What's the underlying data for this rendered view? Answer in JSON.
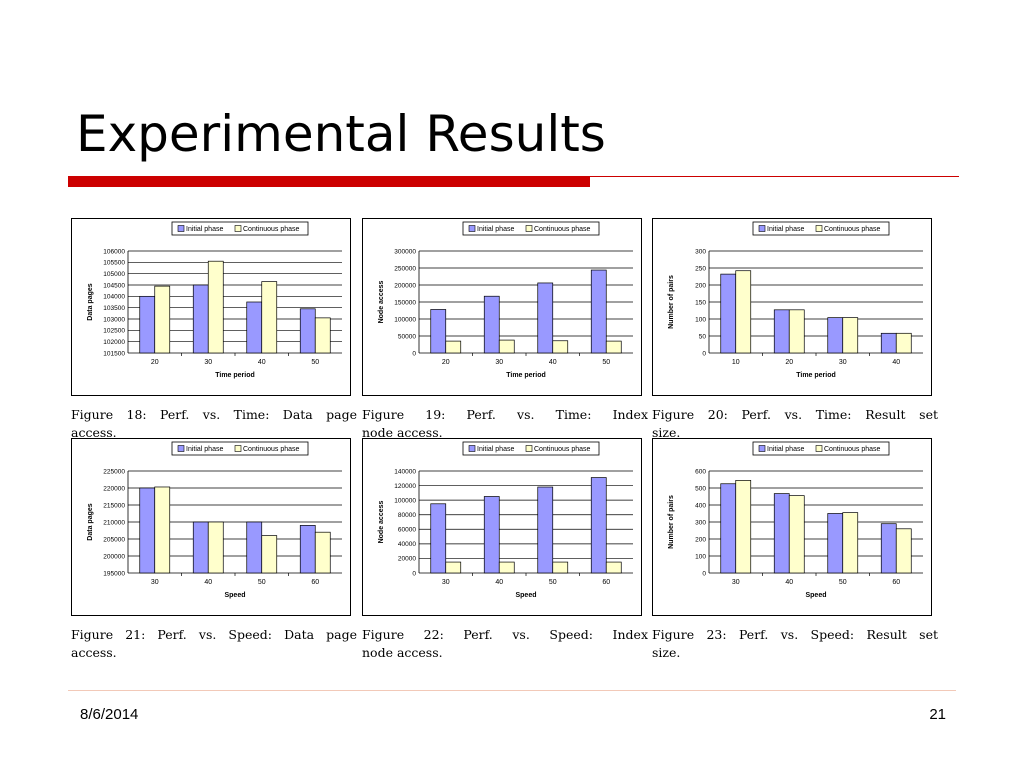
{
  "slide": {
    "title": "Experimental Results",
    "date": "8/6/2014",
    "page_number": "21"
  },
  "colors": {
    "initial": "#9999ff",
    "continuous": "#ffffcc",
    "accent": "#cc0000"
  },
  "legend": [
    "Initial phase",
    "Continuous phase"
  ],
  "figures": [
    {
      "caption_line1": "Figure 18: Perf. vs. Time: Data page",
      "caption_line2": "access."
    },
    {
      "caption_line1": "Figure 19: Perf. vs. Time: Index",
      "caption_line2": "node access."
    },
    {
      "caption_line1": "Figure 20: Perf. vs. Time: Result set",
      "caption_line2": "size."
    },
    {
      "caption_line1": "Figure 21: Perf. vs. Speed: Data page",
      "caption_line2": "access."
    },
    {
      "caption_line1": "Figure 22: Perf. vs. Speed: Index",
      "caption_line2": "node access."
    },
    {
      "caption_line1": "Figure 23: Perf. vs. Speed: Result set",
      "caption_line2": "size."
    }
  ],
  "chart_data": [
    {
      "type": "bar",
      "categories": [
        "20",
        "30",
        "40",
        "50"
      ],
      "series": [
        {
          "name": "Initial phase",
          "values": [
            104000,
            104500,
            103750,
            103450
          ]
        },
        {
          "name": "Continuous phase",
          "values": [
            104450,
            105550,
            104650,
            103050
          ]
        }
      ],
      "xlabel": "Time period",
      "ylabel": "Data pages",
      "ylim": [
        101500,
        106000
      ],
      "yticks": [
        "101500",
        "102000",
        "102500",
        "103000",
        "103500",
        "104000",
        "104500",
        "105000",
        "105500",
        "106000"
      ],
      "legend_position": "top",
      "grid": true
    },
    {
      "type": "bar",
      "categories": [
        "20",
        "30",
        "40",
        "50"
      ],
      "series": [
        {
          "name": "Initial phase",
          "values": [
            128000,
            167000,
            206000,
            244000
          ]
        },
        {
          "name": "Continuous phase",
          "values": [
            35000,
            38000,
            36000,
            35000
          ]
        }
      ],
      "xlabel": "Time period",
      "ylabel": "Node access",
      "ylim": [
        0,
        300000
      ],
      "yticks": [
        "0",
        "50000",
        "100000",
        "150000",
        "200000",
        "250000",
        "300000"
      ],
      "legend_position": "top",
      "grid": true
    },
    {
      "type": "bar",
      "categories": [
        "10",
        "20",
        "30",
        "40"
      ],
      "series": [
        {
          "name": "Initial phase",
          "values": [
            232,
            127,
            104,
            58
          ]
        },
        {
          "name": "Continuous phase",
          "values": [
            242,
            127,
            104,
            58
          ]
        }
      ],
      "xlabel": "Time period",
      "ylabel": "Number of pairs",
      "ylim": [
        0,
        300
      ],
      "yticks": [
        "0",
        "50",
        "100",
        "150",
        "200",
        "250",
        "300"
      ],
      "legend_position": "top",
      "grid": true
    },
    {
      "type": "bar",
      "categories": [
        "30",
        "40",
        "50",
        "60"
      ],
      "series": [
        {
          "name": "Initial phase",
          "values": [
            220000,
            210000,
            210000,
            209000
          ]
        },
        {
          "name": "Continuous phase",
          "values": [
            220300,
            210000,
            206000,
            207000
          ]
        }
      ],
      "xlabel": "Speed",
      "ylabel": "Data pages",
      "ylim": [
        195000,
        225000
      ],
      "yticks": [
        "195000",
        "200000",
        "205000",
        "210000",
        "215000",
        "220000",
        "225000"
      ],
      "legend_position": "top",
      "grid": true
    },
    {
      "type": "bar",
      "categories": [
        "30",
        "40",
        "50",
        "60"
      ],
      "series": [
        {
          "name": "Initial phase",
          "values": [
            95000,
            105000,
            118000,
            131000
          ]
        },
        {
          "name": "Continuous phase",
          "values": [
            15000,
            15000,
            15000,
            15000
          ]
        }
      ],
      "xlabel": "Speed",
      "ylabel": "Node access",
      "ylim": [
        0,
        140000
      ],
      "yticks": [
        "0",
        "20000",
        "40000",
        "60000",
        "80000",
        "100000",
        "120000",
        "140000"
      ],
      "legend_position": "top",
      "grid": true
    },
    {
      "type": "bar",
      "categories": [
        "30",
        "40",
        "50",
        "60"
      ],
      "series": [
        {
          "name": "Initial phase",
          "values": [
            525,
            467,
            350,
            290
          ]
        },
        {
          "name": "Continuous phase",
          "values": [
            545,
            455,
            355,
            260
          ]
        }
      ],
      "xlabel": "Speed",
      "ylabel": "Number of pairs",
      "ylim": [
        0,
        600
      ],
      "yticks": [
        "0",
        "100",
        "200",
        "300",
        "400",
        "500",
        "600"
      ],
      "legend_position": "top",
      "grid": true
    }
  ]
}
